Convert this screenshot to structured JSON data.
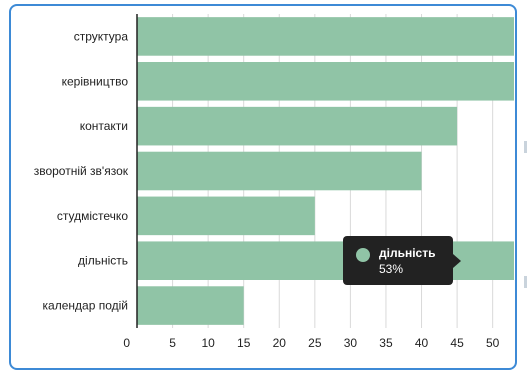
{
  "chart_data": {
    "type": "bar",
    "orientation": "horizontal",
    "categories": [
      "структура",
      "керівництво",
      "контакти",
      "зворотній зв'язок",
      "студмістечко",
      "дільність",
      "календар подій"
    ],
    "values": [
      53,
      53,
      45,
      40,
      25,
      53,
      15
    ],
    "xlim": [
      0,
      53
    ],
    "x_ticks": [
      0,
      5,
      10,
      15,
      20,
      25,
      30,
      35,
      40,
      45,
      50
    ],
    "grid": true,
    "bar_color": "#90c4a6"
  },
  "tooltip": {
    "name": "дільність",
    "value": "53%"
  }
}
